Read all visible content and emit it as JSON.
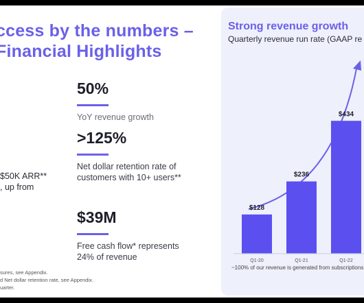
{
  "left": {
    "title_line1": "ccess by the numbers –",
    "title_line2": "Financial Highlights",
    "metrics": [
      {
        "value": "50%",
        "desc": "YoY revenue growth"
      },
      {
        "value": ">125%",
        "desc_line1": "Net dollar retention rate of",
        "desc_line2": "customers with 10+ users**"
      },
      {
        "value": "$39M",
        "desc_line1": "Free cash flow* represents",
        "desc_line2": "24% of revenue"
      }
    ],
    "fragment_line1": "$50K ARR**",
    "fragment_line2": ", up from",
    "footnote_line1": "sures, see Appendix.",
    "footnote_line2": "d Net dollar retention rate, see Appendix.",
    "footnote_line3": "uarter."
  },
  "right": {
    "title": "Strong revenue growth",
    "subtitle": "Quarterly revenue run rate (GAAP re",
    "note": "~100% of our revenue is generated from subscriptions"
  },
  "colors": {
    "accent": "#6b60e8",
    "bar": "#5b4ff0",
    "panel": "#eef0fb"
  },
  "chart_data": {
    "type": "bar",
    "title": "Strong revenue growth",
    "subtitle": "Quarterly revenue run rate (GAAP re",
    "categories": [
      "Q1-20",
      "Q1-21",
      "Q1-22"
    ],
    "values": [
      128,
      236,
      434
    ],
    "data_labels": [
      "$128",
      "$236",
      "$434"
    ],
    "ylim": [
      0,
      560
    ],
    "grid": false,
    "trend_arrow": true
  }
}
